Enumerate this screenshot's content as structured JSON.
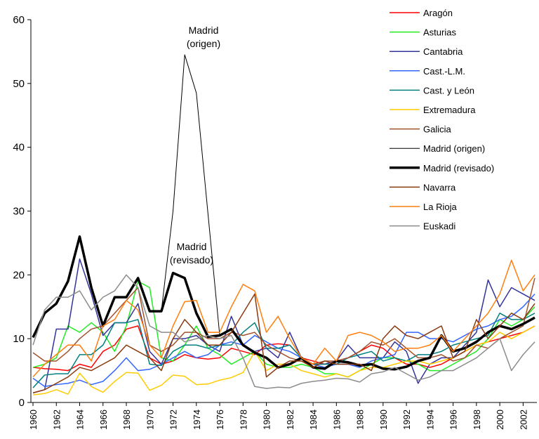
{
  "chart_data": {
    "type": "line",
    "x": [
      1960,
      1961,
      1962,
      1963,
      1964,
      1965,
      1966,
      1967,
      1968,
      1969,
      1970,
      1971,
      1972,
      1973,
      1974,
      1975,
      1976,
      1977,
      1978,
      1979,
      1980,
      1981,
      1982,
      1983,
      1984,
      1985,
      1986,
      1987,
      1988,
      1989,
      1990,
      1991,
      1992,
      1993,
      1994,
      1995,
      1996,
      1997,
      1998,
      1999,
      2000,
      2001,
      2002,
      2003
    ],
    "xlim": [
      1960,
      2003
    ],
    "xticks": [
      1960,
      1962,
      1964,
      1966,
      1968,
      1970,
      1972,
      1974,
      1976,
      1978,
      1980,
      1982,
      1984,
      1986,
      1988,
      1990,
      1992,
      1994,
      1996,
      1998,
      2000,
      2002
    ],
    "ylim": [
      0,
      60
    ],
    "yticks": [
      0,
      10,
      20,
      30,
      40,
      50,
      60
    ],
    "legend": "upper right",
    "annotations": [
      {
        "lines": [
          "Madrid",
          "(origen)"
        ]
      },
      {
        "lines": [
          "Madrid",
          "(revisado)"
        ]
      }
    ],
    "series": [
      {
        "name": "Aragón",
        "color": "#ff0000",
        "width": 1.5,
        "values": [
          5.5,
          5.3,
          5.2,
          5,
          6,
          5.5,
          8,
          9,
          11.5,
          12,
          7,
          6,
          6.5,
          7.5,
          7,
          6.8,
          7,
          8.5,
          8,
          7.5,
          9,
          9.2,
          9,
          7,
          6.5,
          6,
          6.5,
          7,
          8,
          9,
          8.5,
          7,
          6,
          6,
          5.5,
          6,
          7,
          8,
          9,
          9.5,
          10,
          10.5,
          11,
          12
        ]
      },
      {
        "name": "Asturias",
        "color": "#22ee22",
        "width": 1.5,
        "values": [
          5.5,
          6,
          7,
          12,
          11,
          12.5,
          11,
          8,
          12,
          19,
          18,
          7,
          6.5,
          9,
          12,
          8.5,
          7.5,
          6,
          7,
          8,
          6,
          5.5,
          5.5,
          6,
          5.5,
          4.5,
          4.5,
          4,
          5,
          6,
          7,
          7,
          6.5,
          6,
          5,
          5,
          6,
          7,
          8,
          10,
          13,
          12,
          13,
          15
        ]
      },
      {
        "name": "Cantabria",
        "color": "#333399",
        "width": 1.5,
        "values": [
          1.5,
          2,
          11.5,
          11.5,
          22.5,
          17,
          10.5,
          12.5,
          12.5,
          15.5,
          8,
          6,
          10,
          10,
          10.5,
          9,
          8,
          13.5,
          9,
          8,
          8.5,
          7,
          11,
          7,
          6,
          6,
          6.5,
          9,
          7,
          7,
          7,
          9.5,
          8,
          3,
          6,
          7,
          7,
          9,
          11,
          19.2,
          15,
          18,
          17,
          16
        ]
      },
      {
        "name": "Cast.-L.M.",
        "color": "#3366ff",
        "width": 1.5,
        "values": [
          3.8,
          2.5,
          2.8,
          3,
          3.5,
          2.8,
          3.3,
          5,
          7,
          5,
          5.2,
          6,
          7,
          8,
          7,
          7.5,
          9,
          9.5,
          9,
          10.5,
          9.5,
          8.5,
          8,
          7,
          6,
          5.5,
          6,
          6,
          5.5,
          6.5,
          7,
          7.5,
          11,
          11,
          10,
          10,
          9.5,
          10.5,
          11.5,
          12,
          13,
          13.5,
          15,
          17
        ]
      },
      {
        "name": "Cast. y León",
        "color": "#008080",
        "width": 1.5,
        "values": [
          2.3,
          4.3,
          4.5,
          4.5,
          7.5,
          7.5,
          9,
          12.5,
          12.5,
          13,
          6,
          5.8,
          8,
          9,
          9,
          8.5,
          9,
          9,
          11,
          12.5,
          8.5,
          8.5,
          9,
          7,
          6,
          6,
          6,
          7,
          7.5,
          8,
          6.5,
          7,
          6.5,
          7.5,
          7.5,
          8,
          9,
          9.5,
          10,
          10.5,
          14,
          13,
          13,
          14
        ]
      },
      {
        "name": "Extremadura",
        "color": "#ffcc00",
        "width": 1.5,
        "values": [
          1.2,
          1.4,
          2,
          1.3,
          4.6,
          2.5,
          1.6,
          3.3,
          4.7,
          4.6,
          1.9,
          2.7,
          4.3,
          4.1,
          2.8,
          2.9,
          3.5,
          3.9,
          4.7,
          8,
          5,
          6,
          6,
          5,
          4.5,
          4,
          4.5,
          4,
          5,
          5.5,
          5.5,
          6,
          6.5,
          6.5,
          6,
          6.5,
          7,
          8,
          9,
          9.5,
          11,
          10,
          11,
          12
        ]
      },
      {
        "name": "Galicia",
        "color": "#a0522d",
        "width": 1.5,
        "values": [
          7.8,
          6.5,
          6.5,
          8,
          10,
          11.5,
          12,
          14,
          16,
          18,
          9,
          8,
          9,
          11,
          11,
          10,
          10,
          11,
          10.5,
          11,
          9,
          8,
          7,
          6.5,
          6,
          6.5,
          6.5,
          7,
          8,
          9.5,
          9,
          10,
          8.5,
          7,
          7,
          7.5,
          6.5,
          7,
          9,
          8.5,
          10,
          11,
          12,
          19.5
        ]
      },
      {
        "name": "Madrid (origen)",
        "color": "#000000",
        "width": 1,
        "values": [
          10.2,
          14,
          15.5,
          19,
          26,
          18,
          12,
          16.5,
          16.5,
          19.5,
          14.3,
          14.3,
          30,
          54.5,
          48.5,
          29.5,
          10.5,
          11.5,
          9,
          7.8,
          7,
          5.5,
          6,
          7,
          5.5,
          5.3,
          6.5,
          6.3,
          5.8,
          6,
          5.3,
          5.2,
          5.6,
          6.5,
          7,
          10.5,
          8,
          8.5,
          9.5,
          11,
          12,
          11.5,
          12.3,
          13.3
        ]
      },
      {
        "name": "Madrid (revisado)",
        "color": "#000000",
        "width": 3.5,
        "values": [
          10.2,
          14,
          15.5,
          19,
          26,
          18,
          12,
          16.5,
          16.5,
          19.5,
          14.3,
          14.3,
          20.3,
          19.5,
          14,
          10.3,
          10.5,
          11.5,
          9,
          7.8,
          7,
          5.5,
          6,
          7,
          5.5,
          5.3,
          6.5,
          6.3,
          5.8,
          6,
          5.3,
          5.2,
          5.6,
          6.5,
          7,
          10.5,
          8,
          8.5,
          9.5,
          11,
          12,
          11.5,
          12.3,
          13.3
        ]
      },
      {
        "name": "Navarra",
        "color": "#8b3a0f",
        "width": 1.5,
        "values": [
          1.5,
          2,
          3,
          4,
          5.5,
          5,
          6,
          7,
          9,
          8,
          7,
          5,
          10,
          13,
          11,
          9,
          9,
          11,
          14,
          17,
          4,
          5.5,
          6.5,
          6.5,
          5.5,
          6.5,
          6,
          6,
          6,
          5,
          10,
          12,
          10.5,
          10,
          11,
          12,
          7,
          8,
          13,
          10,
          12,
          14,
          13,
          15.5
        ]
      },
      {
        "name": "La Rioja",
        "color": "#ff7f0e",
        "width": 1.5,
        "values": [
          4,
          6,
          7.5,
          9,
          9,
          6.5,
          12,
          13,
          16,
          14.5,
          9,
          7,
          12,
          15.8,
          16,
          11,
          11,
          15,
          18.5,
          17.5,
          11,
          13.5,
          10,
          7,
          6,
          8.5,
          6.5,
          10.5,
          11,
          10.5,
          9.5,
          8,
          8.5,
          8.5,
          9,
          10.5,
          8,
          10,
          12,
          14,
          17,
          22.3,
          17.5,
          20
        ]
      },
      {
        "name": "Euskadi",
        "color": "#8c8c8c",
        "width": 1.5,
        "values": [
          9,
          14.5,
          16.5,
          16.5,
          17.5,
          14.5,
          16.5,
          17.5,
          20,
          18,
          12,
          11,
          11,
          9.5,
          10,
          10.5,
          10,
          10.5,
          7,
          2.5,
          2.2,
          2.4,
          2.3,
          3,
          3.3,
          3.5,
          3.8,
          3.7,
          3.2,
          4.5,
          4.8,
          5.5,
          4.5,
          3.5,
          4,
          5,
          5,
          6,
          7,
          8.5,
          10,
          5,
          7.5,
          9.5
        ]
      }
    ]
  }
}
